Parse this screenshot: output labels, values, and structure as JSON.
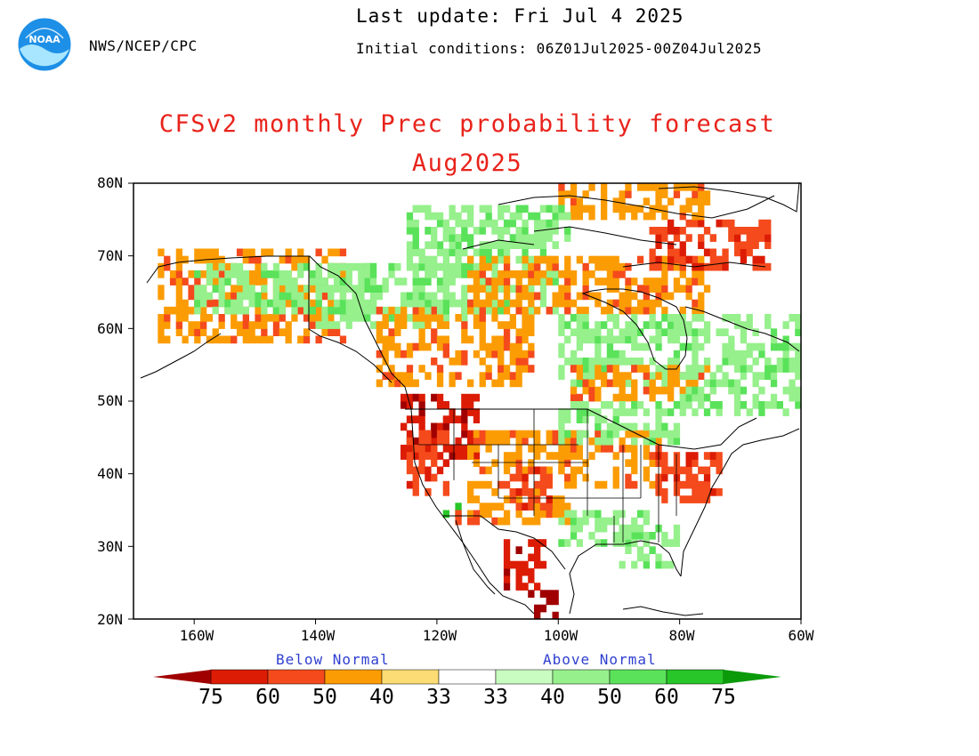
{
  "header": {
    "agency": "NWS/NCEP/CPC",
    "last_update": "Last update: Fri Jul 4 2025",
    "initial_conditions": "Initial conditions: 06Z01Jul2025-00Z04Jul2025",
    "logo_text": "NOAA"
  },
  "title": "CFSv2 monthly Prec probability forecast",
  "subtitle": "Aug2025",
  "map": {
    "lon_range": [
      -170,
      -60
    ],
    "lat_range": [
      20,
      80
    ],
    "lat_labels": [
      "80N",
      "70N",
      "60N",
      "50N",
      "40N",
      "30N",
      "20N"
    ],
    "lon_labels": [
      "160W",
      "140W",
      "120W",
      "100W",
      "80W",
      "60W"
    ],
    "projection": "latitude-longitude",
    "regions": [
      {
        "category": "below",
        "level": 40,
        "lon_range": [
          -166,
          -135
        ],
        "lat_range": [
          58,
          71
        ]
      },
      {
        "category": "above",
        "level": 40,
        "lon_range": [
          -160,
          -130
        ],
        "lat_range": [
          62,
          69
        ]
      },
      {
        "category": "above",
        "level": 40,
        "lon_range": [
          -140,
          -115
        ],
        "lat_range": [
          60,
          69
        ]
      },
      {
        "category": "below",
        "level": 40,
        "lon_range": [
          -130,
          -104
        ],
        "lat_range": [
          52,
          63
        ]
      },
      {
        "category": "above",
        "level": 40,
        "lon_range": [
          -125,
          -100
        ],
        "lat_range": [
          62,
          73
        ]
      },
      {
        "category": "below",
        "level": 40,
        "lon_range": [
          -115,
          -75
        ],
        "lat_range": [
          62,
          70
        ]
      },
      {
        "category": "above",
        "level": 40,
        "lon_range": [
          -100,
          -80
        ],
        "lat_range": [
          52,
          62
        ]
      },
      {
        "category": "below",
        "level": 40,
        "lon_range": [
          -98,
          -75
        ],
        "lat_range": [
          50,
          55
        ]
      },
      {
        "category": "above",
        "level": 40,
        "lon_range": [
          -80,
          -60
        ],
        "lat_range": [
          48,
          62
        ]
      },
      {
        "category": "below",
        "level": 50,
        "lon_range": [
          -85,
          -65
        ],
        "lat_range": [
          68,
          75
        ]
      },
      {
        "category": "below",
        "level": 40,
        "lon_range": [
          -100,
          -75
        ],
        "lat_range": [
          75,
          80
        ]
      },
      {
        "category": "above",
        "level": 40,
        "lon_range": [
          -125,
          -98
        ],
        "lat_range": [
          71,
          77
        ]
      },
      {
        "category": "below",
        "level": 60,
        "lon_range": [
          -126,
          -113
        ],
        "lat_range": [
          42,
          51
        ]
      },
      {
        "category": "below",
        "level": 50,
        "lon_range": [
          -125,
          -118
        ],
        "lat_range": [
          37,
          46
        ]
      },
      {
        "category": "below",
        "level": 40,
        "lon_range": [
          -115,
          -98
        ],
        "lat_range": [
          33,
          46
        ]
      },
      {
        "category": "below",
        "level": 50,
        "lon_range": [
          -108,
          -101
        ],
        "lat_range": [
          35,
          41
        ]
      },
      {
        "category": "below",
        "level": 60,
        "lon_range": [
          -109,
          -102
        ],
        "lat_range": [
          24,
          31
        ]
      },
      {
        "category": "below",
        "level": 75,
        "lon_range": [
          -105,
          -100
        ],
        "lat_range": [
          20,
          24
        ]
      },
      {
        "category": "below",
        "level": 40,
        "lon_range": [
          -100,
          -83
        ],
        "lat_range": [
          38,
          46
        ]
      },
      {
        "category": "above",
        "level": 40,
        "lon_range": [
          -100,
          -80
        ],
        "lat_range": [
          44,
          50
        ]
      },
      {
        "category": "below",
        "level": 50,
        "lon_range": [
          -84,
          -73
        ],
        "lat_range": [
          36,
          43
        ]
      },
      {
        "category": "above",
        "level": 40,
        "lon_range": [
          -100,
          -85
        ],
        "lat_range": [
          30,
          35
        ]
      },
      {
        "category": "above",
        "level": 40,
        "lon_range": [
          -90,
          -80
        ],
        "lat_range": [
          27,
          33
        ]
      },
      {
        "category": "above",
        "level": 60,
        "lon_range": [
          -119,
          -116
        ],
        "lat_range": [
          34,
          36
        ]
      },
      {
        "category": "below",
        "level": 50,
        "lon_range": [
          -117,
          -112
        ],
        "lat_range": [
          33,
          35
        ]
      }
    ]
  },
  "legend": {
    "below_label": "Below Normal",
    "above_label": "Above Normal",
    "ticks": [
      "75",
      "60",
      "50",
      "40",
      "33",
      "33",
      "40",
      "50",
      "60",
      "75"
    ],
    "colors": {
      "below_75": "#a00000",
      "below_60": "#dc1c04",
      "below_50": "#f44a1c",
      "below_40": "#fc9c04",
      "below_33": "#fcdc74",
      "normal": "#ffffff",
      "above_33": "#c8fcc0",
      "above_40": "#96f08c",
      "above_50": "#5ae25a",
      "above_60": "#28c628",
      "above_75": "#0a9a0a"
    }
  }
}
